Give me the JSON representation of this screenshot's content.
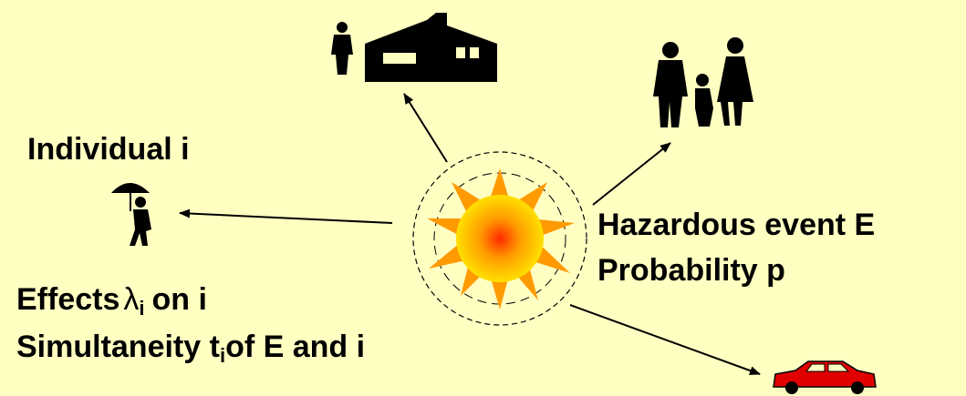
{
  "labels": {
    "individual": "Individual i",
    "event": "Hazardous event E",
    "probability": "Probability p",
    "effects": {
      "text": "Effects",
      "symbol": "λ",
      "subscript": "i",
      "rest": "on i"
    },
    "simultaneity": {
      "text": "Simultaneity t",
      "subscript": "i",
      "rest": "of E and i"
    }
  }
}
